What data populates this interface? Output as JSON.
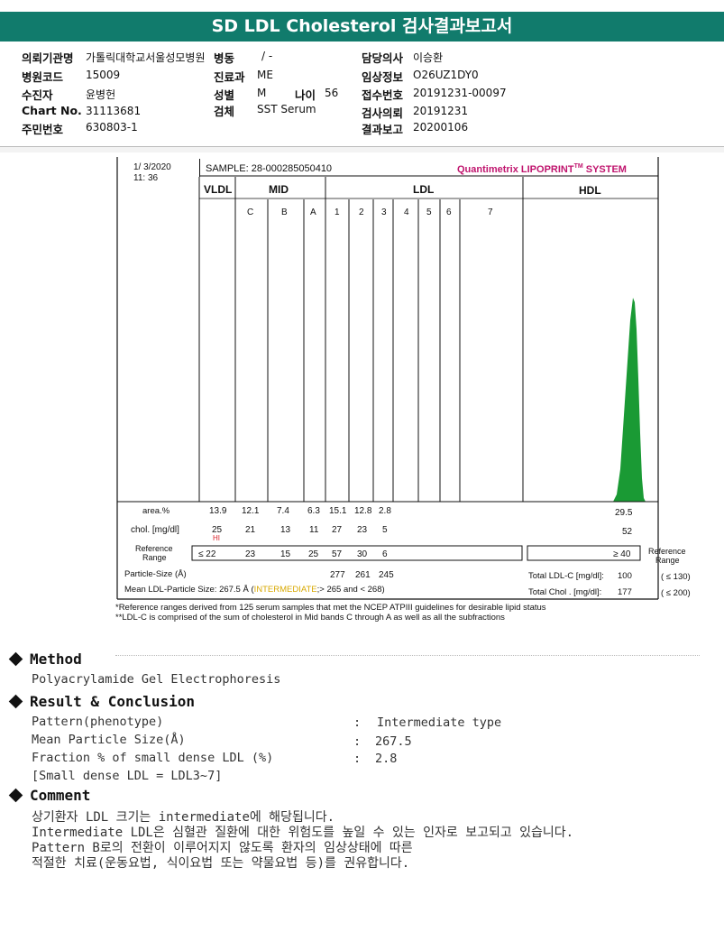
{
  "header": {
    "title": "SD LDL Cholesterol 검사결과보고서"
  },
  "info": {
    "col1": [
      {
        "label": "의뢰기관명",
        "value": "가톨릭대학교서울성모병원"
      },
      {
        "label": "병원코드",
        "value": "15009"
      },
      {
        "label": "수진자",
        "value": "윤병헌"
      },
      {
        "label": "Chart No.",
        "value": "31113681"
      },
      {
        "label": "주민번호",
        "value": "630803-1"
      }
    ],
    "col2": [
      {
        "label": "병동",
        "value": "/ -"
      },
      {
        "label": "진료과",
        "value": "ME"
      },
      {
        "label": "성별",
        "value": "M"
      },
      {
        "label": "검체",
        "value": "SST Serum"
      }
    ],
    "age": {
      "label": "나이",
      "value": "56"
    },
    "col3": [
      {
        "label": "담당의사",
        "value": "이승환"
      },
      {
        "label": "임상정보",
        "value": "O26UZ1DY0"
      },
      {
        "label": "접수번호",
        "value": "20191231-00097"
      },
      {
        "label": "검사의뢰",
        "value": "20191231"
      },
      {
        "label": "결과보고",
        "value": "20200106"
      }
    ]
  },
  "lipoprint": {
    "date": "1/ 3/2020",
    "time": "11: 36",
    "sample": "SAMPLE:  28-000285050410",
    "brand": "Quantimetrix LIPOPRINT",
    "brand_tm": "TM",
    "brand_system": " SYSTEM",
    "band_groups": {
      "vldl": "VLDL",
      "mid": "MID",
      "ldl": "LDL",
      "hdl": "HDL"
    },
    "band_labels": [
      "C",
      "B",
      "A",
      "1",
      "2",
      "3",
      "4",
      "5",
      "6",
      "7"
    ],
    "area_label": "area.%",
    "area_values": [
      "13.9",
      "12.1",
      "7.4",
      "6.3",
      "15.1",
      "12.8",
      "2.8",
      "29.5"
    ],
    "chol_label": "chol. [mg/dl]",
    "chol_values": [
      "25",
      "21",
      "13",
      "11",
      "27",
      "23",
      "5",
      "52"
    ],
    "hi_flag": "HI",
    "ref_label_1": "Reference",
    "ref_label_2": "Range",
    "ref_values": [
      "≤  22",
      "23",
      "15",
      "25",
      "57",
      "30",
      "6",
      "≥ 40"
    ],
    "particle_size_label": "Particle-Size (Å)",
    "particle_sizes": [
      "277",
      "261",
      "245"
    ],
    "mean_ldl_prefix": "Mean LDL-Particle Size:   267.5 Å  (",
    "mean_ldl_tag": "INTERMEDIATE",
    "mean_ldl_suffix": ";> 265 and  < 268)",
    "total_ldl_label": "Total LDL-C [mg/dl]:",
    "total_ldl_value": "100",
    "total_ldl_ref": "( ≤ 130)",
    "total_chol_label": "Total Chol . [mg/dl]:",
    "total_chol_value": "177",
    "total_chol_ref": "( ≤ 200)",
    "footnote_1": "*Reference ranges derived from 125 serum samples that met the NCEP ATPIII guidelines for desirable lipid status",
    "footnote_2": "**LDL-C is comprised of the sum of cholesterol in Mid bands C through A as well as all the subfractions"
  },
  "method": {
    "heading": "Method",
    "text": "Polyacrylamide Gel Electrophoresis"
  },
  "result": {
    "heading": "Result & Conclusion",
    "rows": [
      {
        "label": "Pattern(phenotype)",
        "value": "Intermediate type"
      },
      {
        "label": "Mean Particle Size(Å)",
        "value": "267.5"
      },
      {
        "label": "Fraction % of small dense LDL (%)",
        "value": "2.8"
      }
    ],
    "colon": ":",
    "note": "[Small dense LDL = LDL3~7]"
  },
  "comment": {
    "heading": "Comment",
    "lines": [
      "상기환자 LDL 크기는 intermediate에 해당됩니다.",
      "Intermediate LDL은 심혈관 질환에 대한 위험도를 높일 수 있는 인자로 보고되고 있습니다.",
      "Pattern B로의 전환이 이루어지지 않도록 환자의 임상상태에 따른",
      "적절한 치료(운동요법, 식이요법 또는 약물요법 등)를 권유합니다."
    ]
  },
  "colors": {
    "title_bar": "#117b6c",
    "vldl": "#8a2db0",
    "mid": "#3a2ad8",
    "ldl1": "#f2ee12",
    "ldl2": "#f4a21a",
    "ldl3": "#e53a2a",
    "ldl4": "#d8207a",
    "hdl": "#1a9a34",
    "brand": "#c0156e",
    "intermediate": "#d8a800"
  }
}
